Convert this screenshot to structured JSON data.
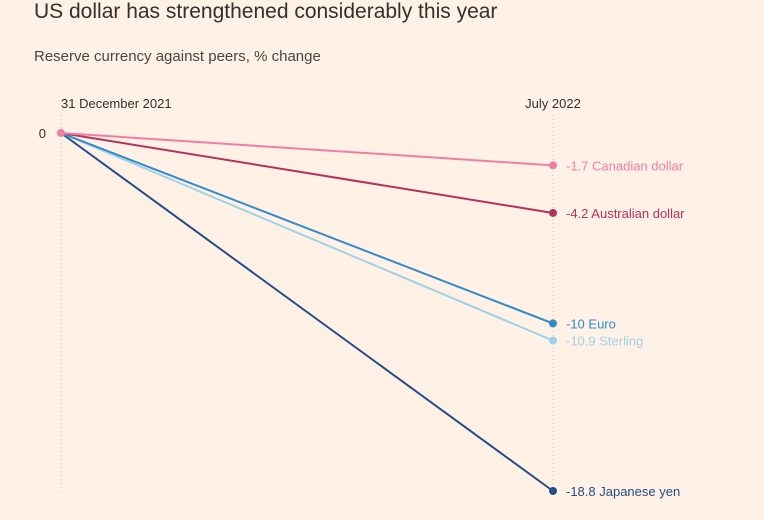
{
  "title": "US dollar has strengthened considerably this year",
  "subtitle": "Reserve currency against peers, % change",
  "chart_data": {
    "type": "line",
    "title": "US dollar has strengthened considerably this year",
    "subtitle": "Reserve currency against peers, % change",
    "categories": [
      "31 December 2021",
      "July 2022"
    ],
    "y_tick_label": "0",
    "ylim": [
      0,
      -18.8
    ],
    "series": [
      {
        "name": "Canadian dollar",
        "values": [
          0,
          -1.7
        ],
        "value_label": "-1.7",
        "color": "#f27da2"
      },
      {
        "name": "Australian dollar",
        "values": [
          0,
          -4.2
        ],
        "value_label": "-4.2",
        "color": "#b3325b"
      },
      {
        "name": "Euro",
        "values": [
          0,
          -10
        ],
        "value_label": "-10",
        "color": "#2e8bcc"
      },
      {
        "name": "Sterling",
        "values": [
          0,
          -10.9
        ],
        "value_label": "-10.9",
        "color": "#9dd3e6"
      },
      {
        "name": "Japanese yen",
        "values": [
          0,
          -18.8
        ],
        "value_label": "-18.8",
        "color": "#234e87"
      }
    ]
  }
}
